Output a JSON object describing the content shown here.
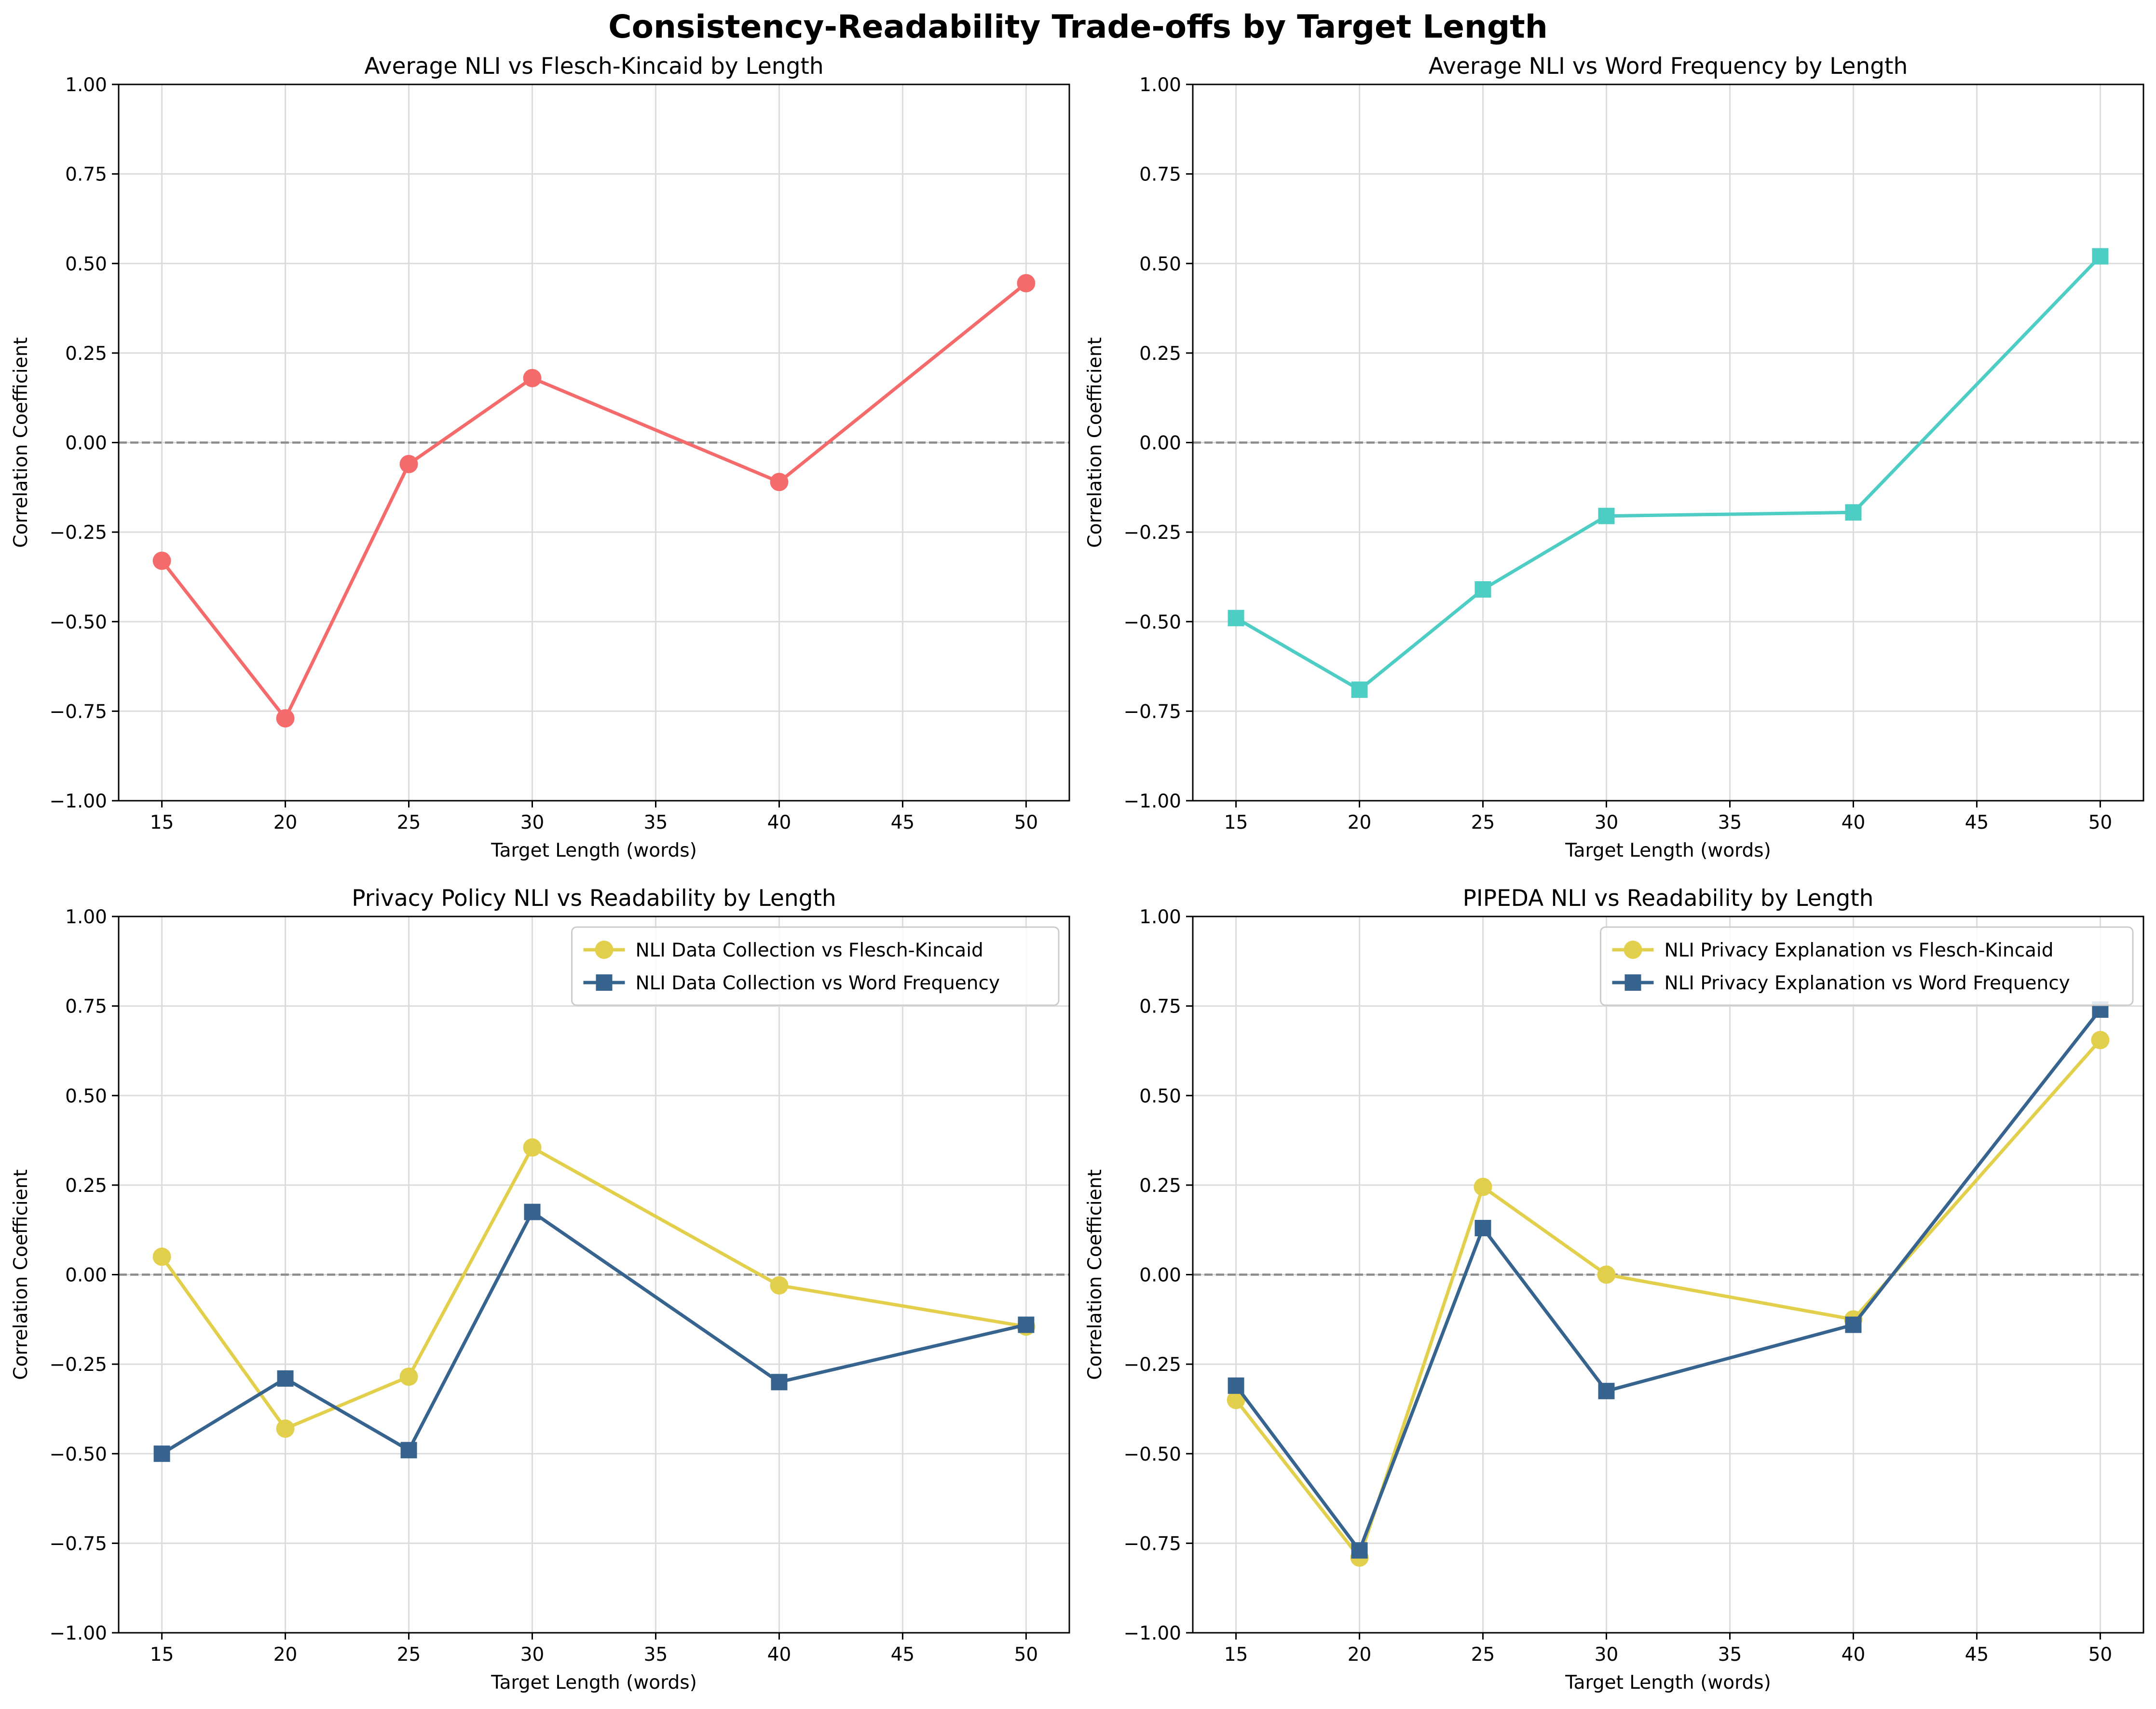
{
  "figure": {
    "title": "Consistency-Readability Trade-offs by Target Length"
  },
  "chart_data": [
    {
      "type": "line",
      "title": "Average NLI vs Flesch-Kincaid by Length",
      "xlabel": "Target Length (words)",
      "ylabel": "Correlation Coefficient",
      "xlim": [
        13.25,
        51.75
      ],
      "ylim": [
        -1.0,
        1.0
      ],
      "xticks": [
        15,
        20,
        25,
        30,
        35,
        40,
        45,
        50
      ],
      "yticks": [
        -1.0,
        -0.75,
        -0.5,
        -0.25,
        0.0,
        0.25,
        0.5,
        0.75,
        1.0
      ],
      "ytick_labels": [
        "−1.00",
        "−0.75",
        "−0.50",
        "−0.25",
        "0.00",
        "0.25",
        "0.50",
        "0.75",
        "1.00"
      ],
      "grid": true,
      "zero_line": true,
      "legend": null,
      "x": [
        15,
        20,
        25,
        30,
        40,
        50
      ],
      "series": [
        {
          "name": "",
          "color": "#f56b6b",
          "marker": "circle",
          "values": [
            -0.33,
            -0.77,
            -0.06,
            0.18,
            -0.11,
            0.445
          ]
        }
      ]
    },
    {
      "type": "line",
      "title": "Average NLI vs Word Frequency by Length",
      "xlabel": "Target Length (words)",
      "ylabel": "Correlation Coefficient",
      "xlim": [
        13.25,
        51.75
      ],
      "ylim": [
        -1.0,
        1.0
      ],
      "xticks": [
        15,
        20,
        25,
        30,
        35,
        40,
        45,
        50
      ],
      "yticks": [
        -1.0,
        -0.75,
        -0.5,
        -0.25,
        0.0,
        0.25,
        0.5,
        0.75,
        1.0
      ],
      "ytick_labels": [
        "−1.00",
        "−0.75",
        "−0.50",
        "−0.25",
        "0.00",
        "0.25",
        "0.50",
        "0.75",
        "1.00"
      ],
      "grid": true,
      "zero_line": true,
      "legend": null,
      "x": [
        15,
        20,
        25,
        30,
        40,
        50
      ],
      "series": [
        {
          "name": "",
          "color": "#4ecdc4",
          "marker": "square",
          "values": [
            -0.49,
            -0.69,
            -0.41,
            -0.205,
            -0.195,
            0.52
          ]
        }
      ]
    },
    {
      "type": "line",
      "title": "Privacy Policy NLI vs Readability by Length",
      "xlabel": "Target Length (words)",
      "ylabel": "Correlation Coefficient",
      "xlim": [
        13.25,
        51.75
      ],
      "ylim": [
        -1.0,
        1.0
      ],
      "xticks": [
        15,
        20,
        25,
        30,
        35,
        40,
        45,
        50
      ],
      "yticks": [
        -1.0,
        -0.75,
        -0.5,
        -0.25,
        0.0,
        0.25,
        0.5,
        0.75,
        1.0
      ],
      "ytick_labels": [
        "−1.00",
        "−0.75",
        "−0.50",
        "−0.25",
        "0.00",
        "0.25",
        "0.50",
        "0.75",
        "1.00"
      ],
      "grid": true,
      "zero_line": true,
      "legend": "top-right",
      "x": [
        15,
        20,
        25,
        30,
        40,
        50
      ],
      "series": [
        {
          "name": "NLI Data Collection vs Flesch-Kincaid",
          "color": "#e2cf4c",
          "marker": "circle",
          "values": [
            0.05,
            -0.43,
            -0.285,
            0.355,
            -0.03,
            -0.145
          ]
        },
        {
          "name": "NLI Data Collection vs Word Frequency",
          "color": "#37648f",
          "marker": "square",
          "values": [
            -0.5,
            -0.29,
            -0.49,
            0.175,
            -0.3,
            -0.14
          ]
        }
      ]
    },
    {
      "type": "line",
      "title": "PIPEDA NLI vs Readability by Length",
      "xlabel": "Target Length (words)",
      "ylabel": "Correlation Coefficient",
      "xlim": [
        13.25,
        51.75
      ],
      "ylim": [
        -1.0,
        1.0
      ],
      "xticks": [
        15,
        20,
        25,
        30,
        35,
        40,
        45,
        50
      ],
      "yticks": [
        -1.0,
        -0.75,
        -0.5,
        -0.25,
        0.0,
        0.25,
        0.5,
        0.75,
        1.0
      ],
      "ytick_labels": [
        "−1.00",
        "−0.75",
        "−0.50",
        "−0.25",
        "0.00",
        "0.25",
        "0.50",
        "0.75",
        "1.00"
      ],
      "grid": true,
      "zero_line": true,
      "legend": "top-right",
      "x": [
        15,
        20,
        25,
        30,
        40,
        50
      ],
      "series": [
        {
          "name": "NLI Privacy Explanation vs Flesch-Kincaid",
          "color": "#e2cf4c",
          "marker": "circle",
          "values": [
            -0.35,
            -0.79,
            0.245,
            0.0,
            -0.125,
            0.655
          ]
        },
        {
          "name": "NLI Privacy Explanation vs Word Frequency",
          "color": "#37648f",
          "marker": "square",
          "values": [
            -0.31,
            -0.77,
            0.13,
            -0.325,
            -0.14,
            0.74
          ]
        }
      ]
    }
  ]
}
